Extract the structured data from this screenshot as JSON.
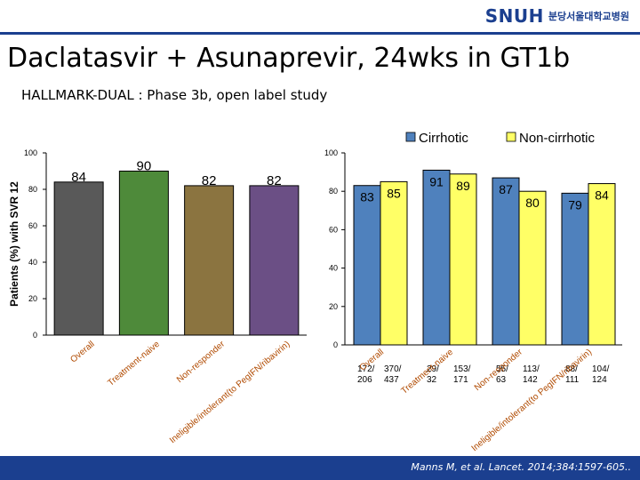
{
  "header": {
    "logo_text": "SNUH",
    "logo_subtitle": "분당서울대학교병원",
    "title": "Daclatasvir + Asunaprevir, 24wks in GT1b",
    "subtitle": "HALLMARK-DUAL : Phase 3b, open label study"
  },
  "footer": {
    "citation": "Manns M, et al. Lancet. 2014;384:1597-605.."
  },
  "chart_data": [
    {
      "type": "bar",
      "ylabel": "Patients (%) with SVR 12",
      "ylim": [
        0,
        100
      ],
      "yticks": [
        0,
        20,
        40,
        60,
        80,
        100
      ],
      "categories": [
        "Overall",
        "Treatment-naive",
        "Non-responder",
        "Ineligible/intolerant(to PegIFN/ribavirin)"
      ],
      "values": [
        84,
        90,
        82,
        82
      ],
      "bar_colors": [
        "#595959",
        "#4e8a3a",
        "#8b7440",
        "#6b4f85"
      ]
    },
    {
      "type": "bar",
      "ylim": [
        0,
        100
      ],
      "yticks": [
        0,
        20,
        40,
        60,
        80,
        100
      ],
      "categories": [
        "Overall",
        "Treatment-naive",
        "Non-responder",
        "Ineligible/intolerant(to PegIFN/ribavirin)"
      ],
      "legend_position": "top",
      "series": [
        {
          "name": "Cirrhotic",
          "color": "#4f81bd",
          "values": [
            83,
            91,
            87,
            79
          ],
          "counts": [
            "172/ 206",
            "29/ 32",
            "55/ 63",
            "88/ 111"
          ]
        },
        {
          "name": "Non-cirrhotic",
          "color": "#ffff66",
          "values": [
            85,
            89,
            80,
            84
          ],
          "counts": [
            "370/ 437",
            "153/ 171",
            "113/ 142",
            "104/ 124"
          ]
        }
      ]
    }
  ]
}
